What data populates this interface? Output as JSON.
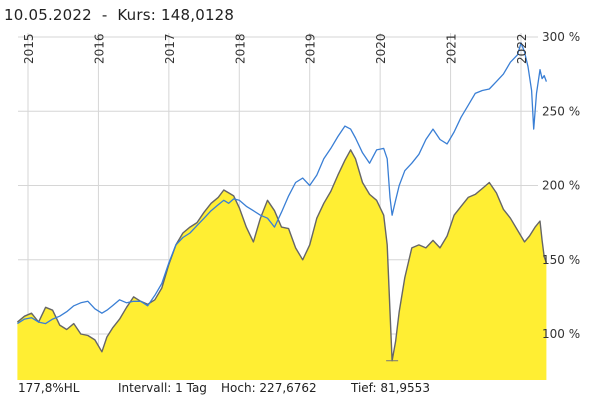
{
  "header": {
    "date": "10.05.2022",
    "separator": "-",
    "price_label": "Kurs:",
    "price_value": "148,0128"
  },
  "footer": {
    "hl": "177,8%HL",
    "interval": "Intervall: 1 Tag",
    "high": "Hoch: 227,6762",
    "low": "Tief: 81,9553"
  },
  "colors": {
    "area_fill": "#ffee33",
    "area_line": "#666666",
    "compare_line": "#3a7fd5",
    "grid": "#d6d6d6"
  },
  "chart_data": {
    "type": "area",
    "title": "",
    "xlabel": "",
    "ylabel": "",
    "x_ticks": [
      "2015",
      "2016",
      "2017",
      "2018",
      "2019",
      "2020",
      "2021",
      "2022"
    ],
    "y_ticks": [
      "100 %",
      "150 %",
      "200 %",
      "250 %",
      "300 %"
    ],
    "ylim": [
      80,
      305
    ],
    "xlim": [
      2014.85,
      2022.36
    ],
    "grid": true,
    "series": [
      {
        "style": "area",
        "points": [
          [
            2014.85,
            108
          ],
          [
            2014.95,
            112
          ],
          [
            2015.05,
            114
          ],
          [
            2015.15,
            108
          ],
          [
            2015.25,
            118
          ],
          [
            2015.35,
            116
          ],
          [
            2015.45,
            106
          ],
          [
            2015.55,
            103
          ],
          [
            2015.65,
            107
          ],
          [
            2015.75,
            100
          ],
          [
            2015.85,
            99
          ],
          [
            2015.95,
            96
          ],
          [
            2016.05,
            88
          ],
          [
            2016.12,
            98
          ],
          [
            2016.2,
            104
          ],
          [
            2016.3,
            110
          ],
          [
            2016.4,
            118
          ],
          [
            2016.5,
            125
          ],
          [
            2016.6,
            122
          ],
          [
            2016.7,
            120
          ],
          [
            2016.8,
            123
          ],
          [
            2016.9,
            131
          ],
          [
            2017.0,
            147
          ],
          [
            2017.1,
            160
          ],
          [
            2017.2,
            168
          ],
          [
            2017.3,
            172
          ],
          [
            2017.4,
            175
          ],
          [
            2017.5,
            182
          ],
          [
            2017.6,
            188
          ],
          [
            2017.7,
            192
          ],
          [
            2017.78,
            197
          ],
          [
            2017.85,
            195
          ],
          [
            2017.92,
            193
          ],
          [
            2018.0,
            185
          ],
          [
            2018.1,
            172
          ],
          [
            2018.2,
            162
          ],
          [
            2018.3,
            178
          ],
          [
            2018.4,
            190
          ],
          [
            2018.5,
            183
          ],
          [
            2018.6,
            172
          ],
          [
            2018.7,
            171
          ],
          [
            2018.8,
            158
          ],
          [
            2018.9,
            150
          ],
          [
            2019.0,
            160
          ],
          [
            2019.1,
            178
          ],
          [
            2019.2,
            188
          ],
          [
            2019.3,
            196
          ],
          [
            2019.4,
            207
          ],
          [
            2019.5,
            217
          ],
          [
            2019.58,
            224
          ],
          [
            2019.65,
            218
          ],
          [
            2019.75,
            202
          ],
          [
            2019.85,
            194
          ],
          [
            2019.95,
            190
          ],
          [
            2020.05,
            180
          ],
          [
            2020.1,
            160
          ],
          [
            2020.14,
            115
          ],
          [
            2020.17,
            82
          ],
          [
            2020.22,
            95
          ],
          [
            2020.27,
            115
          ],
          [
            2020.35,
            138
          ],
          [
            2020.45,
            158
          ],
          [
            2020.55,
            160
          ],
          [
            2020.65,
            158
          ],
          [
            2020.75,
            163
          ],
          [
            2020.85,
            158
          ],
          [
            2020.95,
            166
          ],
          [
            2021.05,
            180
          ],
          [
            2021.15,
            186
          ],
          [
            2021.25,
            192
          ],
          [
            2021.35,
            194
          ],
          [
            2021.45,
            198
          ],
          [
            2021.55,
            202
          ],
          [
            2021.65,
            195
          ],
          [
            2021.75,
            184
          ],
          [
            2021.85,
            178
          ],
          [
            2021.95,
            170
          ],
          [
            2022.05,
            162
          ],
          [
            2022.12,
            166
          ],
          [
            2022.2,
            172
          ],
          [
            2022.27,
            176
          ],
          [
            2022.3,
            163
          ],
          [
            2022.33,
            152
          ],
          [
            2022.36,
            148
          ]
        ]
      },
      {
        "style": "line",
        "points": [
          [
            2014.85,
            107
          ],
          [
            2014.95,
            110
          ],
          [
            2015.05,
            111
          ],
          [
            2015.15,
            108
          ],
          [
            2015.25,
            107
          ],
          [
            2015.35,
            110
          ],
          [
            2015.45,
            112
          ],
          [
            2015.55,
            115
          ],
          [
            2015.65,
            119
          ],
          [
            2015.75,
            121
          ],
          [
            2015.85,
            122
          ],
          [
            2015.95,
            117
          ],
          [
            2016.05,
            114
          ],
          [
            2016.12,
            116
          ],
          [
            2016.2,
            119
          ],
          [
            2016.3,
            123
          ],
          [
            2016.4,
            121
          ],
          [
            2016.5,
            122
          ],
          [
            2016.6,
            122
          ],
          [
            2016.7,
            119
          ],
          [
            2016.8,
            126
          ],
          [
            2016.9,
            134
          ],
          [
            2017.0,
            148
          ],
          [
            2017.1,
            160
          ],
          [
            2017.2,
            165
          ],
          [
            2017.3,
            168
          ],
          [
            2017.4,
            173
          ],
          [
            2017.5,
            178
          ],
          [
            2017.6,
            183
          ],
          [
            2017.7,
            187
          ],
          [
            2017.78,
            190
          ],
          [
            2017.85,
            188
          ],
          [
            2017.92,
            191
          ],
          [
            2018.0,
            190
          ],
          [
            2018.1,
            186
          ],
          [
            2018.2,
            183
          ],
          [
            2018.3,
            180
          ],
          [
            2018.4,
            178
          ],
          [
            2018.5,
            172
          ],
          [
            2018.6,
            182
          ],
          [
            2018.7,
            193
          ],
          [
            2018.8,
            202
          ],
          [
            2018.9,
            205
          ],
          [
            2019.0,
            200
          ],
          [
            2019.1,
            207
          ],
          [
            2019.2,
            218
          ],
          [
            2019.3,
            225
          ],
          [
            2019.4,
            233
          ],
          [
            2019.5,
            240
          ],
          [
            2019.58,
            238
          ],
          [
            2019.65,
            232
          ],
          [
            2019.75,
            222
          ],
          [
            2019.85,
            215
          ],
          [
            2019.95,
            224
          ],
          [
            2020.05,
            225
          ],
          [
            2020.1,
            218
          ],
          [
            2020.14,
            192
          ],
          [
            2020.17,
            180
          ],
          [
            2020.22,
            190
          ],
          [
            2020.27,
            200
          ],
          [
            2020.35,
            210
          ],
          [
            2020.45,
            215
          ],
          [
            2020.55,
            221
          ],
          [
            2020.65,
            231
          ],
          [
            2020.75,
            238
          ],
          [
            2020.85,
            231
          ],
          [
            2020.95,
            228
          ],
          [
            2021.05,
            236
          ],
          [
            2021.15,
            246
          ],
          [
            2021.25,
            254
          ],
          [
            2021.35,
            262
          ],
          [
            2021.45,
            264
          ],
          [
            2021.55,
            265
          ],
          [
            2021.65,
            270
          ],
          [
            2021.75,
            275
          ],
          [
            2021.85,
            283
          ],
          [
            2021.95,
            288
          ],
          [
            2022.0,
            296
          ],
          [
            2022.05,
            290
          ],
          [
            2022.1,
            280
          ],
          [
            2022.15,
            264
          ],
          [
            2022.18,
            238
          ],
          [
            2022.22,
            262
          ],
          [
            2022.27,
            278
          ],
          [
            2022.3,
            272
          ],
          [
            2022.33,
            274
          ],
          [
            2022.36,
            270
          ]
        ]
      }
    ]
  }
}
